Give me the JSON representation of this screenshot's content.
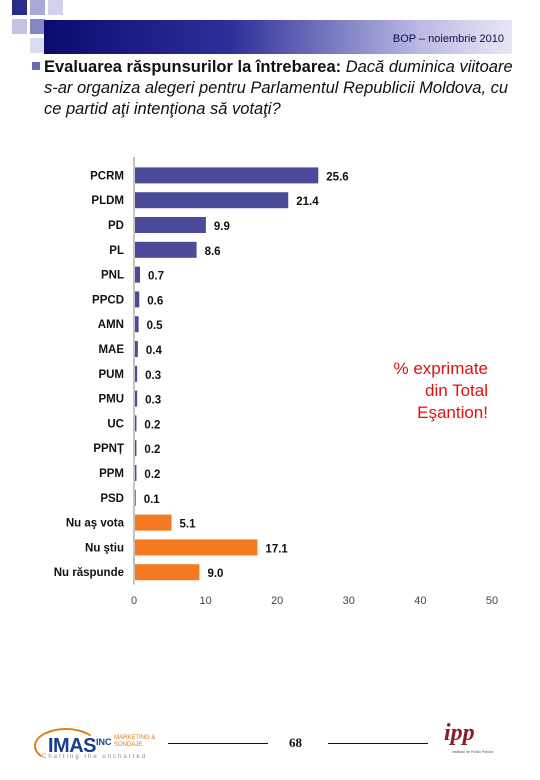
{
  "header": {
    "right_text": "BOP – noiembrie 2010"
  },
  "title": {
    "bold_part": "Evaluarea răspunsurilor la întrebarea:",
    "italic_part": "Dacă duminica viitoare s-ar organiza alegeri pentru Parlamentul Republicii Moldova, cu ce partid aţi intenţiona să votaţi?"
  },
  "note": {
    "line1": "% exprimate",
    "line2": "din Total",
    "line3": "Eşantion!"
  },
  "colors": {
    "header_dark": "#0b0b6e",
    "bar_party": "#4b4b9a",
    "bar_other": "#f47920",
    "note": "#e01010"
  },
  "chart_data": {
    "type": "bar",
    "orientation": "horizontal",
    "categories": [
      "PCRM",
      "PLDM",
      "PD",
      "PL",
      "PNL",
      "PPCD",
      "AMN",
      "MAE",
      "PUM",
      "PMU",
      "UC",
      "PPNȚ",
      "PPM",
      "PSD",
      "Nu aş vota",
      "Nu ştiu",
      "Nu răspunde"
    ],
    "values": [
      25.6,
      21.4,
      9.9,
      8.6,
      0.7,
      0.6,
      0.5,
      0.4,
      0.3,
      0.3,
      0.2,
      0.2,
      0.2,
      0.1,
      5.1,
      17.1,
      9.0
    ],
    "value_labels": [
      "25.6",
      "21.4",
      "9.9",
      "8.6",
      "0.7",
      "0.6",
      "0.5",
      "0.4",
      "0.3",
      "0.3",
      "0.2",
      "0.2",
      "0.2",
      "0.1",
      "5.1",
      "17.1",
      "9.0"
    ],
    "bar_groups": [
      "party",
      "party",
      "party",
      "party",
      "party",
      "party",
      "party",
      "party",
      "party",
      "party",
      "party",
      "party",
      "party",
      "party",
      "other",
      "other",
      "other"
    ],
    "xlim": [
      0,
      50
    ],
    "xticks": [
      0,
      10,
      20,
      30,
      40,
      50
    ],
    "xtick_labels": [
      "0",
      "10",
      "20",
      "30",
      "40",
      "50"
    ],
    "grid": false,
    "legend": "none"
  },
  "footer": {
    "page_number": "68",
    "imas_brand": "IMAS",
    "imas_inc": "INC",
    "imas_sub": "MARKETING & SONDAJE",
    "imas_tagline": "Charting the uncharted",
    "ipp_logo": "ipp",
    "ipp_sub": "Institutul de Politici Publice"
  }
}
